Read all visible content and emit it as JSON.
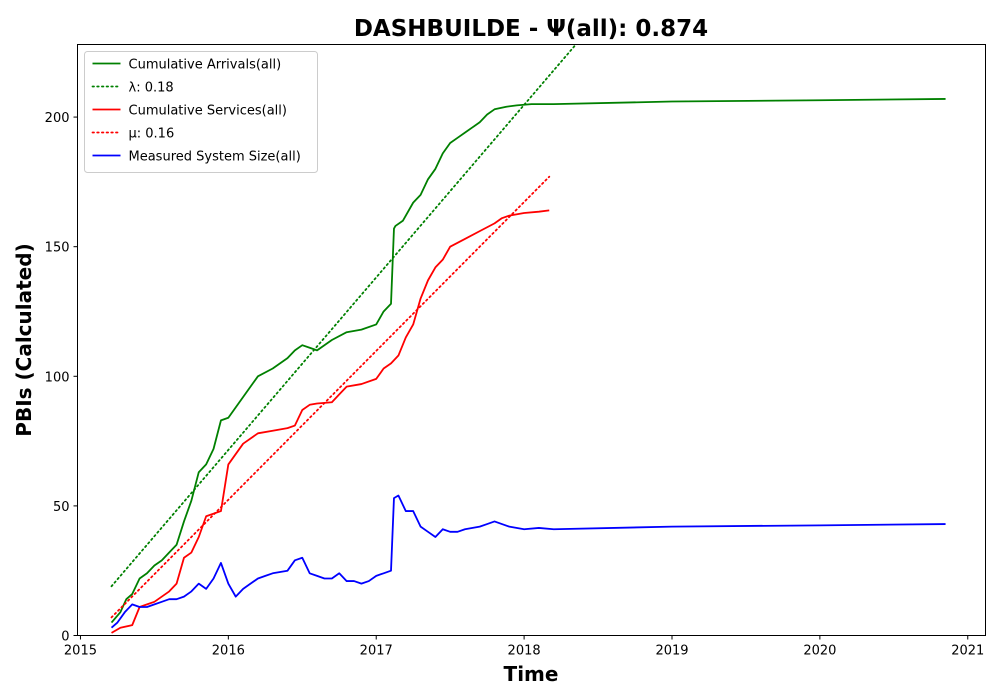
{
  "chart_data": {
    "type": "line",
    "title": "DASHBUILDE -  Ψ(all): 0.874",
    "xlabel": "Time",
    "ylabel": "PBIs (Calculated)",
    "xlim": [
      2014.98,
      2021.12
    ],
    "ylim": [
      0,
      228
    ],
    "xticks": [
      2015,
      2016,
      2017,
      2018,
      2019,
      2020,
      2021
    ],
    "xtick_labels": [
      "2015",
      "2016",
      "2017",
      "2018",
      "2019",
      "2020",
      "2021"
    ],
    "yticks": [
      0,
      50,
      100,
      150,
      200
    ],
    "ytick_labels": [
      "0",
      "50",
      "100",
      "150",
      "200"
    ],
    "grid": false,
    "legend_position": "top-left",
    "series": [
      {
        "name": "Cumulative Arrivals(all)",
        "color": "#008000",
        "style": "solid",
        "x": [
          2015.21,
          2015.27,
          2015.31,
          2015.35,
          2015.4,
          2015.45,
          2015.5,
          2015.55,
          2015.6,
          2015.65,
          2015.7,
          2015.75,
          2015.8,
          2015.85,
          2015.9,
          2015.95,
          2016.0,
          2016.05,
          2016.1,
          2016.15,
          2016.2,
          2016.3,
          2016.4,
          2016.45,
          2016.5,
          2016.55,
          2016.6,
          2016.7,
          2016.8,
          2016.9,
          2017.0,
          2017.05,
          2017.1,
          2017.12,
          2017.13,
          2017.18,
          2017.25,
          2017.3,
          2017.35,
          2017.4,
          2017.45,
          2017.5,
          2017.55,
          2017.6,
          2017.65,
          2017.7,
          2017.75,
          2017.8,
          2017.88,
          2017.95,
          2018.05,
          2018.2,
          2019.0,
          2020.0,
          2020.85
        ],
        "y": [
          5,
          9,
          14,
          16,
          22,
          24,
          27,
          29,
          32,
          35,
          44,
          52,
          63,
          66,
          72,
          83,
          84,
          88,
          92,
          96,
          100,
          103,
          107,
          110,
          112,
          111,
          110,
          114,
          117,
          118,
          120,
          125,
          128,
          157,
          158,
          160,
          167,
          170,
          176,
          180,
          186,
          190,
          192,
          194,
          196,
          198,
          201,
          203,
          204,
          204.5,
          205,
          205,
          206,
          206.5,
          207
        ]
      },
      {
        "name": "λ: 0.18",
        "color": "#008000",
        "style": "dotted",
        "x": [
          2015.21,
          2018.35
        ],
        "y": [
          19,
          228
        ]
      },
      {
        "name": "Cumulative Services(all)",
        "color": "#ff0000",
        "style": "solid",
        "x": [
          2015.21,
          2015.27,
          2015.35,
          2015.4,
          2015.45,
          2015.5,
          2015.6,
          2015.65,
          2015.7,
          2015.75,
          2015.8,
          2015.85,
          2015.95,
          2016.0,
          2016.05,
          2016.1,
          2016.2,
          2016.3,
          2016.4,
          2016.45,
          2016.5,
          2016.55,
          2016.6,
          2016.7,
          2016.75,
          2016.8,
          2016.9,
          2017.0,
          2017.05,
          2017.1,
          2017.15,
          2017.2,
          2017.25,
          2017.3,
          2017.35,
          2017.4,
          2017.45,
          2017.5,
          2017.6,
          2017.7,
          2017.8,
          2017.85,
          2017.9,
          2018.0,
          2018.1,
          2018.17
        ],
        "y": [
          1,
          3,
          4,
          11,
          12,
          13,
          17,
          20,
          30,
          32,
          38,
          46,
          48,
          66,
          70,
          74,
          78,
          79,
          80,
          81,
          87,
          89,
          89.5,
          90,
          93,
          96,
          97,
          99,
          103,
          105,
          108,
          115,
          120,
          130,
          137,
          142,
          145,
          150,
          153,
          156,
          159,
          161,
          162,
          163,
          163.5,
          164
        ]
      },
      {
        "name": "μ: 0.16",
        "color": "#ff0000",
        "style": "dotted",
        "x": [
          2015.21,
          2018.17
        ],
        "y": [
          7,
          177
        ]
      },
      {
        "name": "Measured System Size(all)",
        "color": "#0000ff",
        "style": "solid",
        "x": [
          2015.21,
          2015.25,
          2015.3,
          2015.35,
          2015.4,
          2015.45,
          2015.5,
          2015.55,
          2015.6,
          2015.65,
          2015.7,
          2015.75,
          2015.8,
          2015.85,
          2015.9,
          2015.95,
          2016.0,
          2016.05,
          2016.1,
          2016.15,
          2016.2,
          2016.25,
          2016.3,
          2016.4,
          2016.45,
          2016.5,
          2016.55,
          2016.6,
          2016.65,
          2016.7,
          2016.75,
          2016.8,
          2016.85,
          2016.9,
          2016.95,
          2017.0,
          2017.05,
          2017.1,
          2017.12,
          2017.15,
          2017.2,
          2017.25,
          2017.3,
          2017.35,
          2017.4,
          2017.45,
          2017.5,
          2017.55,
          2017.6,
          2017.7,
          2017.75,
          2017.8,
          2017.85,
          2017.9,
          2018.0,
          2018.1,
          2018.2,
          2019.0,
          2020.0,
          2020.85
        ],
        "y": [
          3,
          5,
          9,
          12,
          11,
          11,
          12,
          13,
          14,
          14,
          15,
          17,
          20,
          18,
          22,
          28,
          20,
          15,
          18,
          20,
          22,
          23,
          24,
          25,
          29,
          30,
          24,
          23,
          22,
          22,
          24,
          21,
          21,
          20,
          21,
          23,
          24,
          25,
          53,
          54,
          48,
          48,
          42,
          40,
          38,
          41,
          40,
          40,
          41,
          42,
          43,
          44,
          43,
          42,
          41,
          41.5,
          41,
          42,
          42.5,
          43
        ]
      }
    ]
  }
}
